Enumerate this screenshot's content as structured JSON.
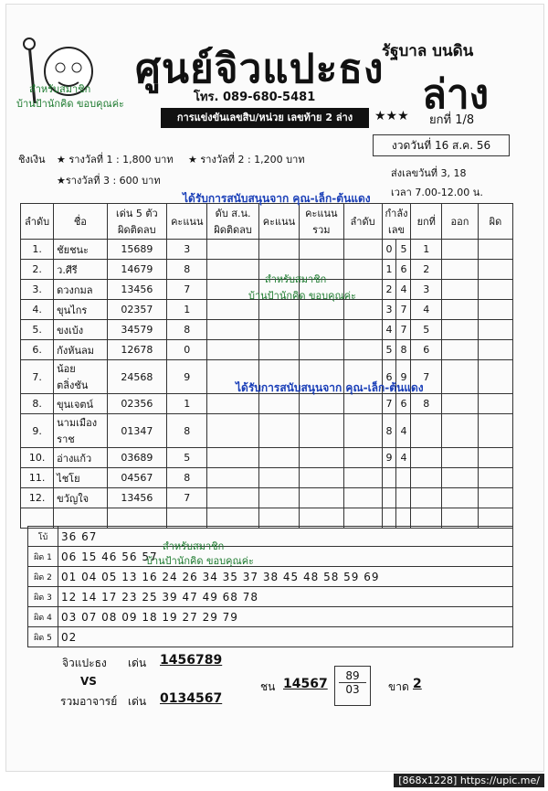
{
  "header": {
    "title": "ศูนย์จิวแปะธง",
    "phone": "โทร. 089-680-5481",
    "gov": "รัฐบาล บนดิน",
    "lower": "ล่าง",
    "banner": "การแข่งขันเลขสิบ/หน่วย เลขท้าย 2 ล่าง",
    "stars": "★★★",
    "round": "ยกที่ 1/8"
  },
  "prizes": {
    "lead": "ชิงเงิน",
    "p1": "★ รางวัลที่ 1 : 1,800 บาท",
    "p2": "★ รางวัลที่ 2 : 1,200 บาท",
    "p3": "★รางวัลที่ 3 : 600 บาท"
  },
  "draw": {
    "date": "งวดวันที่ 16 ส.ค. 56",
    "send": "ส่งเลขวันที่ 3, 18",
    "time": "เวลา 7.00-12.00 น."
  },
  "watermarks": [
    "สำหรับสมาชิก",
    "บ้านป้านักคิด ขอบคุณค่ะ",
    "ได้รับการสนับสนุนจาก คุณ-เล็ก-ต้นแดง"
  ],
  "table": {
    "headers": [
      "ลำดับ",
      "ชื่อ",
      "เด่น 5 ตัว ผิดติดลบ",
      "คะแนน",
      "ดับ ส.น. ผิดติดลบ",
      "คะแนน",
      "คะแนน รวม",
      "ลำดับ",
      "กำลังเลข",
      "ยกที่",
      "ออก",
      "ผิด"
    ],
    "rows": [
      {
        "order": "1.",
        "name": "ชัยชนะ",
        "digits": "15689",
        "score": "3",
        "strength": [
          "0",
          "5"
        ],
        "round": "1"
      },
      {
        "order": "2.",
        "name": "ว.ศีรี",
        "digits": "14679",
        "score": "8",
        "strength": [
          "1",
          "6"
        ],
        "round": "2"
      },
      {
        "order": "3.",
        "name": "ดวงกมล",
        "digits": "13456",
        "score": "7",
        "strength": [
          "2",
          "4"
        ],
        "round": "3"
      },
      {
        "order": "4.",
        "name": "ขุนไกร",
        "digits": "02357",
        "score": "1",
        "strength": [
          "3",
          "7"
        ],
        "round": "4"
      },
      {
        "order": "5.",
        "name": "ขงเบ้ง",
        "digits": "34579",
        "score": "8",
        "strength": [
          "4",
          "7"
        ],
        "round": "5"
      },
      {
        "order": "6.",
        "name": "กังหันลม",
        "digits": "12678",
        "score": "0",
        "strength": [
          "5",
          "8"
        ],
        "round": "6"
      },
      {
        "order": "7.",
        "name": "น้อยตลิ่งชัน",
        "digits": "24568",
        "score": "9",
        "strength": [
          "6",
          "9"
        ],
        "round": "7"
      },
      {
        "order": "8.",
        "name": "ขุนเจตน์",
        "digits": "02356",
        "score": "1",
        "strength": [
          "7",
          "6"
        ],
        "round": "8"
      },
      {
        "order": "9.",
        "name": "นามเมืองราช",
        "digits": "01347",
        "score": "8",
        "strength": [
          "8",
          "4"
        ]
      },
      {
        "order": "10.",
        "name": "อ่างแก้ว",
        "digits": "03689",
        "score": "5",
        "strength": [
          "9",
          "4"
        ]
      },
      {
        "order": "11.",
        "name": "ไชโย",
        "digits": "04567",
        "score": "8"
      },
      {
        "order": "12.",
        "name": "ขวัญใจ",
        "digits": "13456",
        "score": "7"
      }
    ]
  },
  "errors": [
    {
      "label": "โบ้",
      "nums": "36 67"
    },
    {
      "label": "ผิด 1",
      "nums": "06 15 46 56 57"
    },
    {
      "label": "ผิด 2",
      "nums": "01 04 05 13 16 24 26 34 35 37 38 45 48 58 59 69"
    },
    {
      "label": "ผิด 3",
      "nums": "12 14 17 23 25 39 47 49 68 78"
    },
    {
      "label": "ผิด 4",
      "nums": "03 07 08 09 18 19 27 29 79"
    },
    {
      "label": "ผิด 5",
      "nums": "02"
    }
  ],
  "footer": {
    "team1": "จิวแปะธง",
    "top1_label": "เด่น",
    "top1": "1456789",
    "vs": "VS",
    "team2": "รวมอาจารย์",
    "top2_label": "เด่น",
    "top2": "0134567",
    "hit_label": "ชน",
    "hit": "14567",
    "box_top": "89",
    "box_bottom": "03",
    "miss_label": "ขาด",
    "miss": "2"
  },
  "credit": "[868x1228] https://upic.me/"
}
